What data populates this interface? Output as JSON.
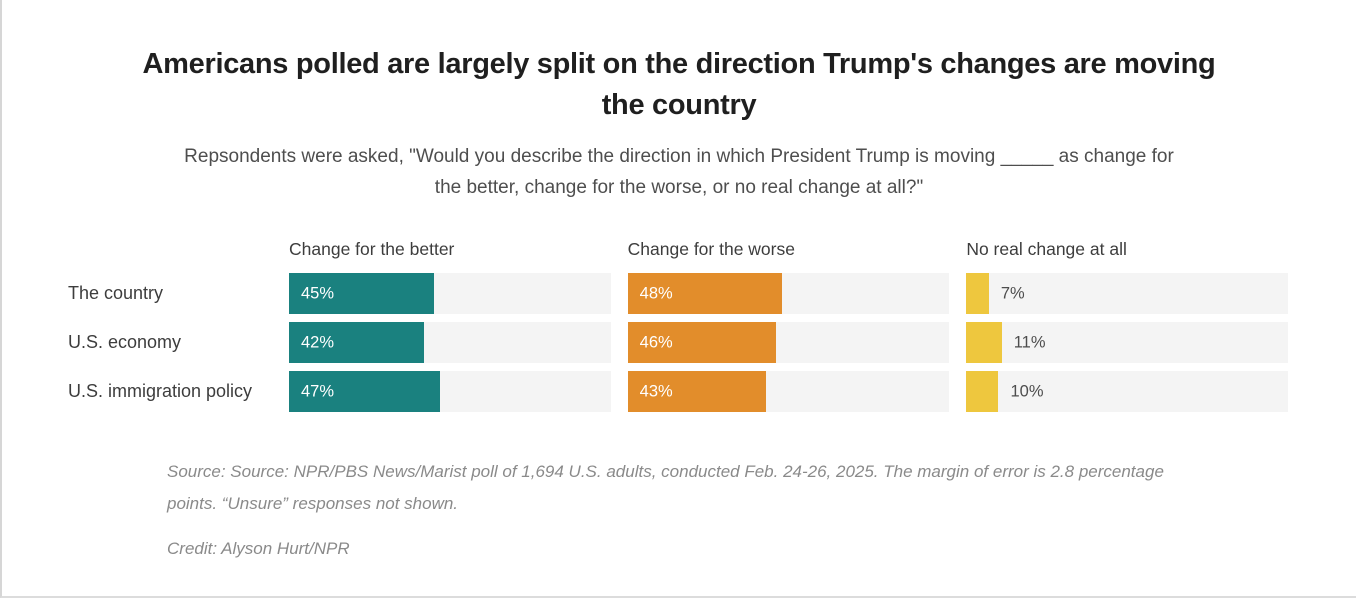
{
  "header": {
    "title": "Americans polled are largely split on the direction Trump's changes are moving the country",
    "subtitle": "Repsondents were asked, \"Would you describe the direction in which President Trump is moving _____ as change for the better, change for the worse, or no real change at all?\""
  },
  "chart_data": {
    "type": "bar",
    "orientation": "horizontal",
    "categories": [
      "The country",
      "U.S. economy",
      "U.S. immigration policy"
    ],
    "series": [
      {
        "name": "Change for the better",
        "color": "#1a817f",
        "values": [
          45,
          42,
          47
        ]
      },
      {
        "name": "Change for the worse",
        "color": "#e28d2b",
        "values": [
          48,
          46,
          43
        ]
      },
      {
        "name": "No real change at all",
        "color": "#eec73e",
        "values": [
          7,
          11,
          10
        ]
      }
    ],
    "value_suffix": "%",
    "xlim": [
      0,
      100
    ],
    "track_color": "#f4f4f4",
    "grid": false,
    "legend_position": "column-headers"
  },
  "footer": {
    "source": "Source: Source: NPR/PBS News/Marist poll of 1,694 U.S. adults, conducted Feb. 24-26, 2025. The margin of error is 2.8 percentage points. “Unsure” responses not shown.",
    "credit": "Credit: Alyson Hurt/NPR"
  }
}
